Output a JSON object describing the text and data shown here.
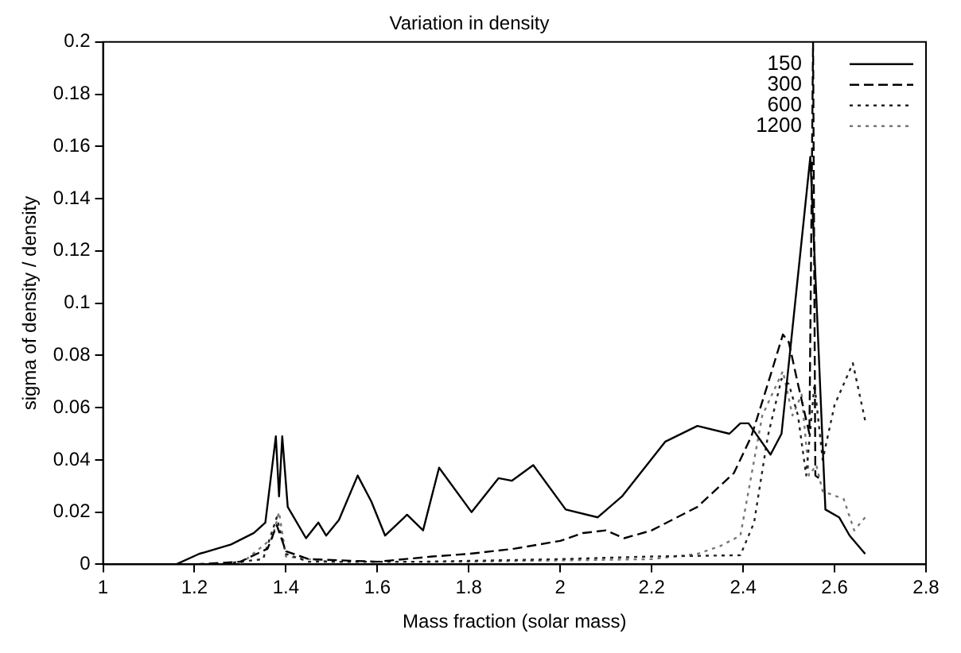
{
  "chart_data": {
    "type": "line",
    "title": "Variation in density",
    "xlabel": "Mass fraction (solar mass)",
    "ylabel": "sigma of density / density",
    "xlim": [
      1,
      2.8
    ],
    "xticks": [
      1,
      1.2,
      1.4,
      1.6,
      1.8,
      2,
      2.2,
      2.4,
      2.6,
      2.8
    ],
    "ylim": [
      0,
      0.2
    ],
    "yticks": [
      0,
      0.02,
      0.04,
      0.06,
      0.08,
      0.1,
      0.12,
      0.14,
      0.16,
      0.18,
      0.2
    ],
    "grid": false,
    "legend": "top right",
    "marker": "none",
    "series": [
      {
        "name": "150",
        "color": "#000000",
        "line_style": "solid",
        "x": [
          1.16,
          1.21,
          1.28,
          1.33,
          1.355,
          1.378,
          1.385,
          1.392,
          1.404,
          1.444,
          1.471,
          1.488,
          1.516,
          1.557,
          1.587,
          1.617,
          1.665,
          1.7,
          1.735,
          1.806,
          1.865,
          1.894,
          1.941,
          2.012,
          2.082,
          2.135,
          2.23,
          2.3,
          2.37,
          2.394,
          2.412,
          2.46,
          2.484,
          2.547,
          2.58,
          2.61,
          2.633,
          2.667
        ],
        "values": [
          0,
          0.004,
          0.0076,
          0.012,
          0.016,
          0.049,
          0.026,
          0.049,
          0.022,
          0.01,
          0.016,
          0.011,
          0.017,
          0.034,
          0.024,
          0.011,
          0.019,
          0.013,
          0.037,
          0.02,
          0.033,
          0.032,
          0.038,
          0.021,
          0.018,
          0.026,
          0.047,
          0.053,
          0.05,
          0.054,
          0.054,
          0.042,
          0.05,
          0.156,
          0.021,
          0.018,
          0.011,
          0.004
        ]
      },
      {
        "name": "300",
        "color": "#000000",
        "line_style": "dashed",
        "x": [
          1.2,
          1.3,
          1.36,
          1.38,
          1.4,
          1.45,
          1.6,
          1.72,
          1.8,
          1.9,
          2,
          2.05,
          2.1,
          2.14,
          2.2,
          2.3,
          2.38,
          2.418,
          2.454,
          2.487,
          2.5,
          2.52,
          2.545,
          2.553,
          2.558,
          2.574
        ],
        "values": [
          0,
          0.001,
          0.006,
          0.015,
          0.005,
          0.002,
          0.001,
          0.003,
          0.004,
          0.006,
          0.009,
          0.012,
          0.013,
          0.01,
          0.013,
          0.022,
          0.035,
          0.049,
          0.069,
          0.088,
          0.085,
          0.069,
          0.05,
          0.2,
          0.034,
          0.032
        ]
      },
      {
        "name": "600",
        "color": "#222222",
        "line_style": "dotted",
        "x": [
          1.25,
          1.35,
          1.38,
          1.4,
          1.45,
          1.7,
          2.0,
          2.2,
          2.394,
          2.424,
          2.454,
          2.484,
          2.5,
          2.52,
          2.538,
          2.556,
          2.574,
          2.6,
          2.64,
          2.667
        ],
        "values": [
          0,
          0.002,
          0.018,
          0.004,
          0.001,
          0.001,
          0.002,
          0.003,
          0.0035,
          0.016,
          0.049,
          0.071,
          0.069,
          0.057,
          0.034,
          0.069,
          0.04,
          0.061,
          0.077,
          0.055
        ]
      },
      {
        "name": "1200",
        "color": "#777777",
        "line_style": "dotted",
        "x": [
          1.3,
          1.37,
          1.385,
          1.4,
          1.5,
          1.8,
          2.2,
          2.3,
          2.35,
          2.394,
          2.442,
          2.487,
          2.508,
          2.528,
          2.544,
          2.56,
          2.574,
          2.62,
          2.643,
          2.667
        ],
        "values": [
          0,
          0.01,
          0.02,
          0.003,
          0.001,
          0.001,
          0.002,
          0.004,
          0.007,
          0.011,
          0.057,
          0.074,
          0.057,
          0.065,
          0.034,
          0.038,
          0.028,
          0.025,
          0.013,
          0.018
        ]
      }
    ]
  }
}
